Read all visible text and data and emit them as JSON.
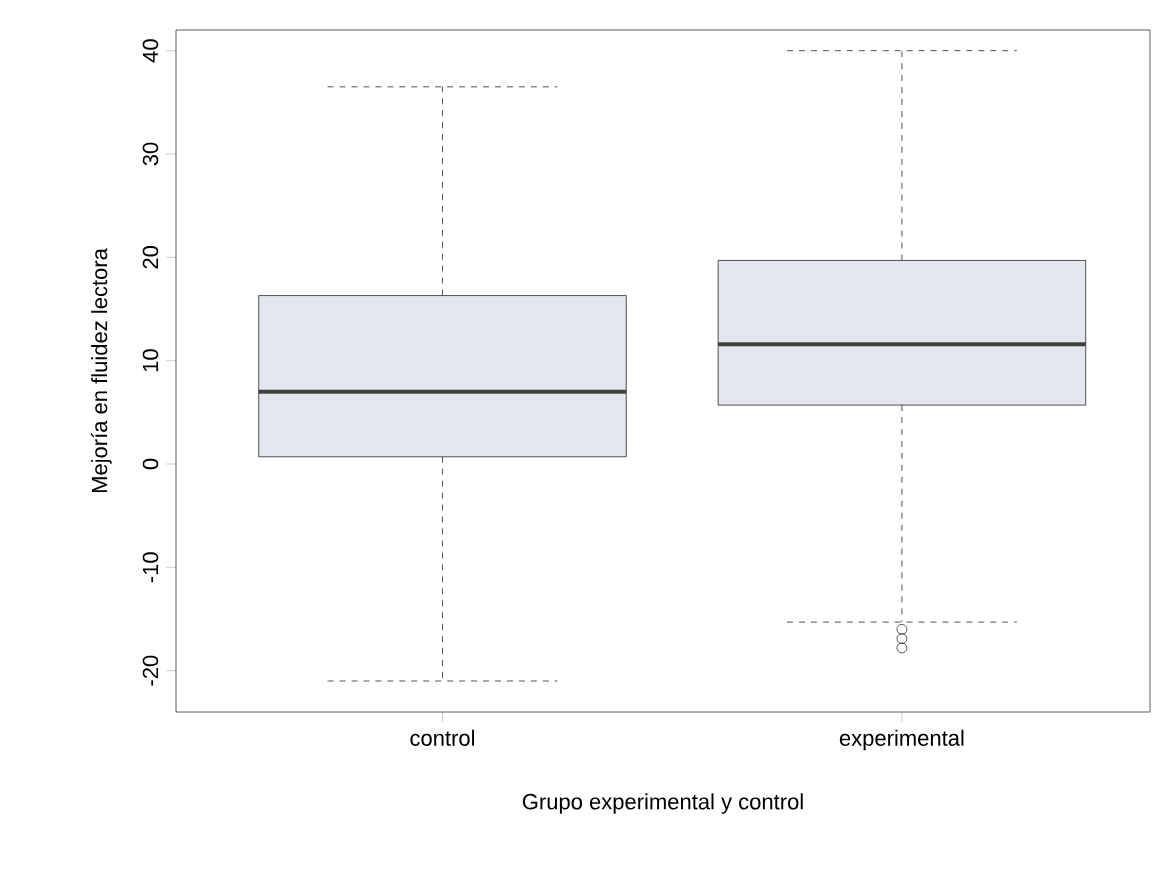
{
  "chart_data": {
    "type": "box",
    "xlabel": "Grupo experimental y control",
    "ylabel": "Mejoría en fluidez lectora",
    "categories": [
      "control",
      "experimental"
    ],
    "color": "#e3e6ee",
    "boxes": [
      {
        "low": -21,
        "q1": 0.7,
        "median": 7,
        "q3": 16.3,
        "high": 36.5
      },
      {
        "low": -15.3,
        "q1": 5.7,
        "median": 11.6,
        "q3": 19.7,
        "high": 40,
        "outliers": [
          -16,
          -16.9,
          -17.8
        ]
      }
    ],
    "ylim": [
      -24,
      42
    ],
    "yticks": [
      -20,
      -10,
      0,
      10,
      20,
      30,
      40
    ],
    "grid": false
  }
}
